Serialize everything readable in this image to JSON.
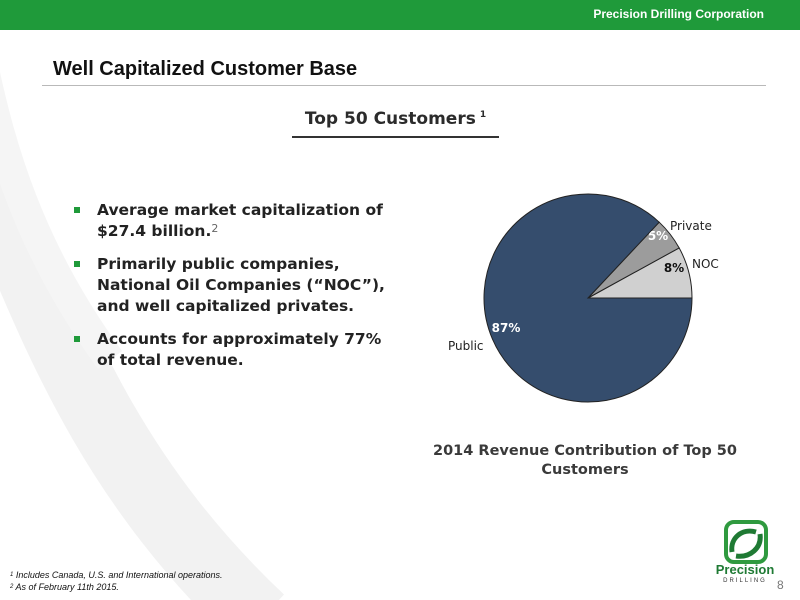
{
  "header": {
    "company": "Precision Drilling Corporation"
  },
  "page": {
    "title": "Well Capitalized Customer Base",
    "number": "8"
  },
  "section": {
    "title": "Top 50 Customers",
    "title_sup": "1"
  },
  "bullets": [
    {
      "text": "Average market capitalization of $27.4 billion.",
      "sup": "2"
    },
    {
      "text": "Primarily public companies, National Oil Companies (“NOC”), and well capitalized privates."
    },
    {
      "text": "Accounts for approximately 77% of total revenue."
    }
  ],
  "chart_data": {
    "type": "pie",
    "caption": "2014 Revenue Contribution of Top 50 Customers",
    "slices": [
      {
        "label": "Public",
        "value": 87,
        "display": "87%",
        "color": "#354d6d"
      },
      {
        "label": "Private",
        "value": 5,
        "display": "5%",
        "color": "#9c9c9c"
      },
      {
        "label": "NOC",
        "value": 8,
        "display": "8%",
        "color": "#d0d0d0"
      }
    ]
  },
  "footnotes": [
    {
      "sup": "1",
      "text": "Includes Canada, U.S. and International operations."
    },
    {
      "sup": "2",
      "text": "As of February 11th 2015."
    }
  ],
  "logo": {
    "name": "Precision",
    "sub": "DRILLING"
  },
  "colors": {
    "brand_green": "#1f9a3a"
  }
}
